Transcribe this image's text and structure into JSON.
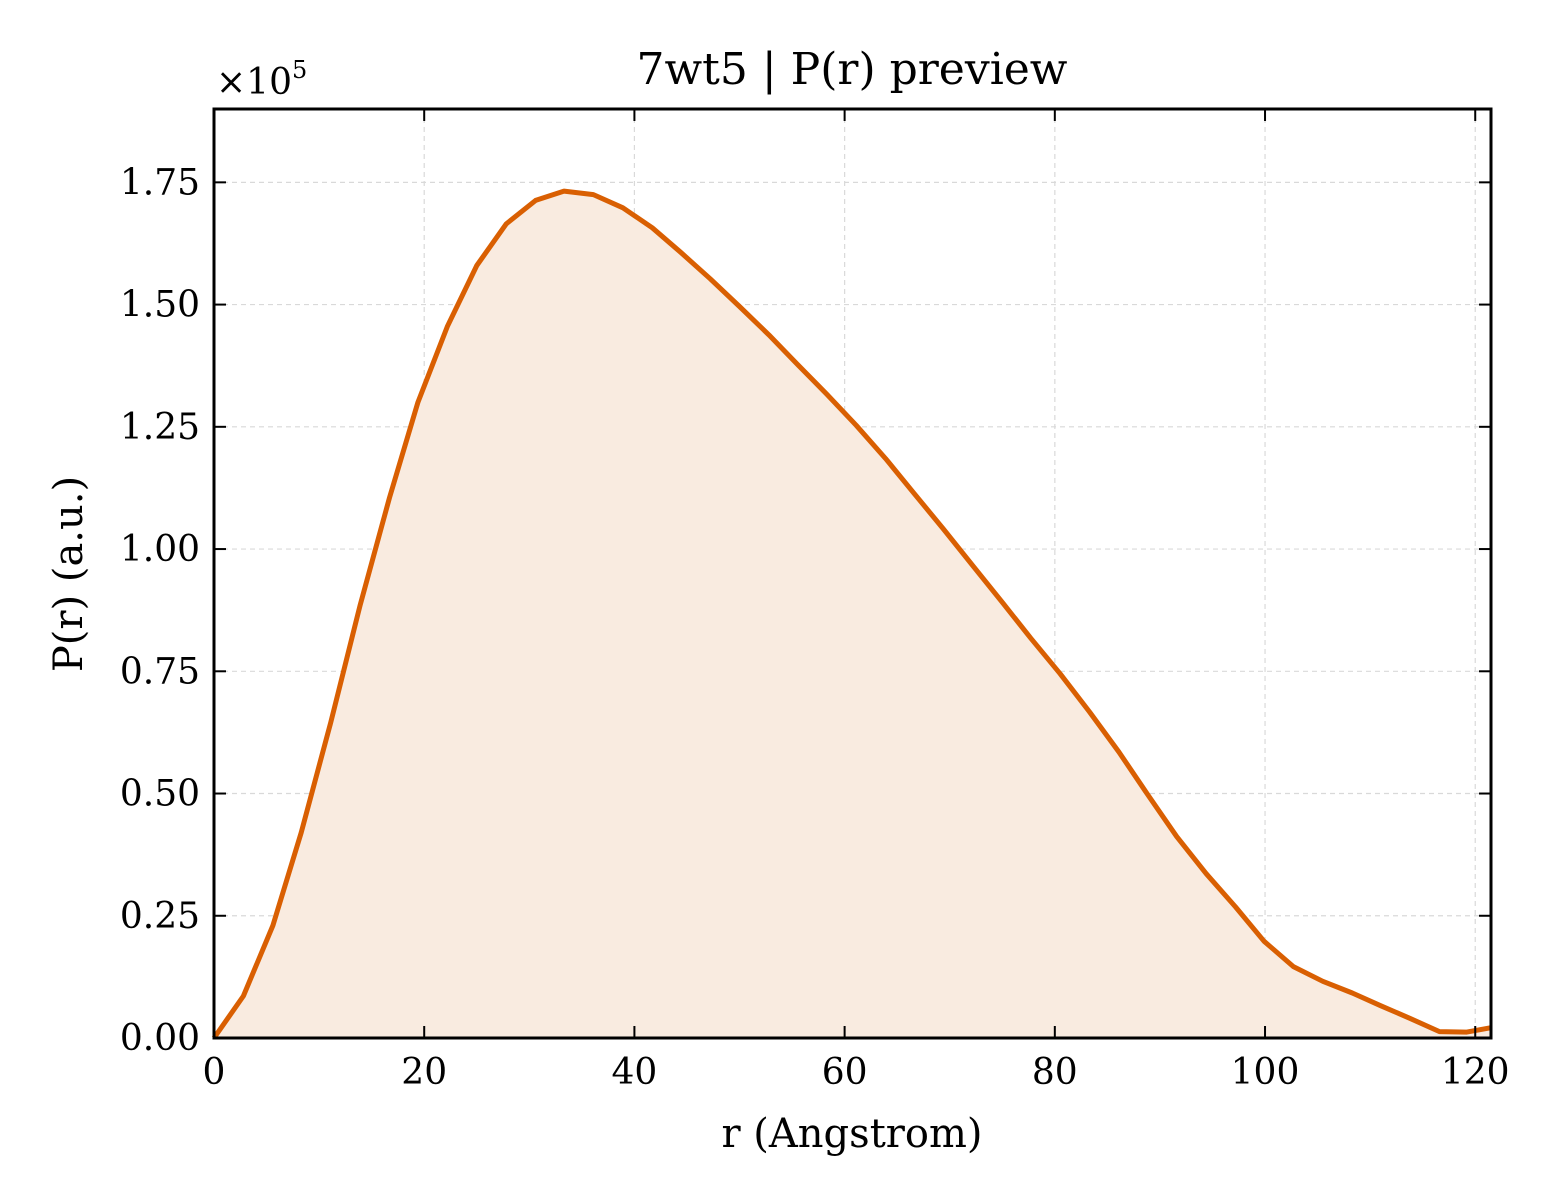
{
  "chart_data": {
    "type": "area",
    "title": "7wt5 | P(r) preview",
    "xlabel": "r (Angstrom)",
    "ylabel": "P(r) (a.u.)",
    "y_multiplier_label": "×10^5",
    "y_multiplier_base": "×10",
    "y_multiplier_exp": "5",
    "xlim": [
      0,
      121.5
    ],
    "ylim": [
      0,
      1.9
    ],
    "x_ticks": [
      0,
      20,
      40,
      60,
      80,
      100,
      120
    ],
    "x_tick_labels": [
      "0",
      "20",
      "40",
      "60",
      "80",
      "100",
      "120"
    ],
    "y_ticks": [
      0,
      0.25,
      0.5,
      0.75,
      1.0,
      1.25,
      1.5,
      1.75
    ],
    "y_tick_labels": [
      "0.00",
      "0.25",
      "0.50",
      "0.75",
      "1.00",
      "1.25",
      "1.50",
      "1.75"
    ],
    "grid": true,
    "legend": "none",
    "colors": {
      "line": "#d95f02",
      "fill": "#f9ebe0",
      "grid": "#d9d9d9",
      "axes": "#000000"
    },
    "series": [
      {
        "x": [
          0,
          2.8,
          5.6,
          8.3,
          11.1,
          13.9,
          16.7,
          19.4,
          22.2,
          25.0,
          27.8,
          30.6,
          33.3,
          36.1,
          38.9,
          41.7,
          44.4,
          47.2,
          50.0,
          52.8,
          55.5,
          58.3,
          61.1,
          63.9,
          66.6,
          69.4,
          72.2,
          75.0,
          77.7,
          80.5,
          83.3,
          86.1,
          88.8,
          91.6,
          94.4,
          97.2,
          99.9,
          102.7,
          105.5,
          108.3,
          111.0,
          113.8,
          116.6,
          119.2,
          121.5
        ],
        "values": [
          0.0,
          0.086,
          0.23,
          0.42,
          0.645,
          0.885,
          1.105,
          1.3,
          1.455,
          1.58,
          1.665,
          1.713,
          1.732,
          1.725,
          1.698,
          1.657,
          1.607,
          1.553,
          1.496,
          1.438,
          1.378,
          1.317,
          1.253,
          1.185,
          1.114,
          1.041,
          0.966,
          0.891,
          0.818,
          0.745,
          0.667,
          0.585,
          0.499,
          0.412,
          0.336,
          0.268,
          0.198,
          0.146,
          0.116,
          0.092,
          0.066,
          0.04,
          0.013,
          0.012,
          0.021
        ]
      }
    ]
  }
}
